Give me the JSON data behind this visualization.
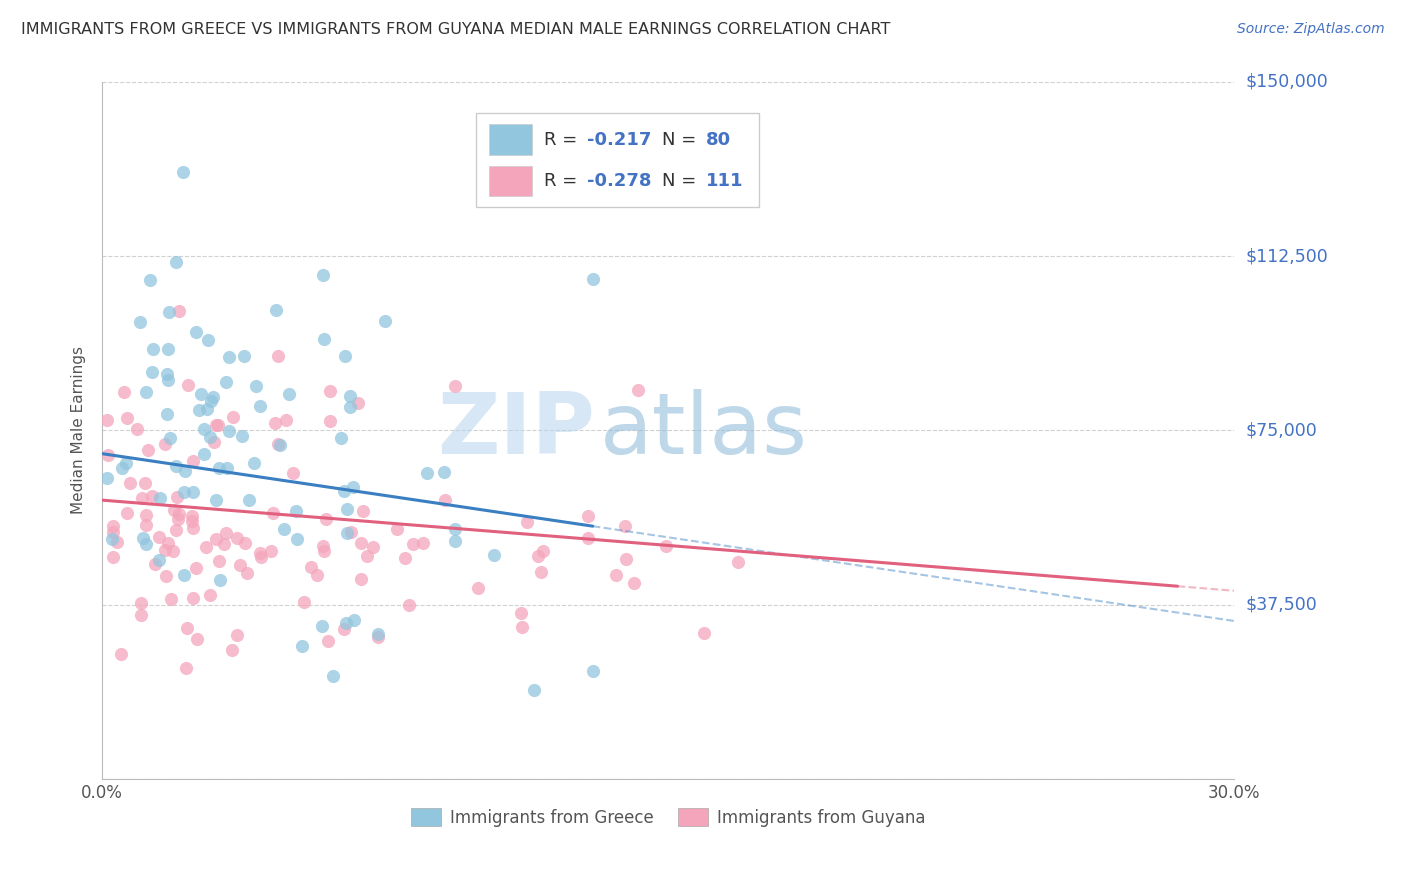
{
  "title": "IMMIGRANTS FROM GREECE VS IMMIGRANTS FROM GUYANA MEDIAN MALE EARNINGS CORRELATION CHART",
  "source": "Source: ZipAtlas.com",
  "ylabel": "Median Male Earnings",
  "xlim": [
    0.0,
    0.3
  ],
  "ylim": [
    0,
    150000
  ],
  "xticks": [
    0.0,
    0.05,
    0.1,
    0.15,
    0.2,
    0.25,
    0.3
  ],
  "xticklabels": [
    "0.0%",
    "",
    "",
    "",
    "",
    "",
    "30.0%"
  ],
  "yticks": [
    0,
    37500,
    75000,
    112500,
    150000
  ],
  "yticklabels": [
    "",
    "$37,500",
    "$75,000",
    "$112,500",
    "$150,000"
  ],
  "greece_color": "#92c5de",
  "guyana_color": "#f4a5bb",
  "greece_line_color": "#3a7fc1",
  "guyana_line_color": "#e0607e",
  "legend_label_greece": "Immigrants from Greece",
  "legend_label_guyana": "Immigrants from Guyana",
  "greece_R": -0.217,
  "greece_N": 80,
  "guyana_R": -0.278,
  "guyana_N": 111,
  "watermark_zip": "ZIP",
  "watermark_atlas": "atlas",
  "background_color": "#ffffff",
  "grid_color": "#cccccc",
  "axis_label_color": "#4472c4",
  "title_color": "#333333",
  "legend_text_color": "#4472c4",
  "legend_rn_dark": "#333333"
}
